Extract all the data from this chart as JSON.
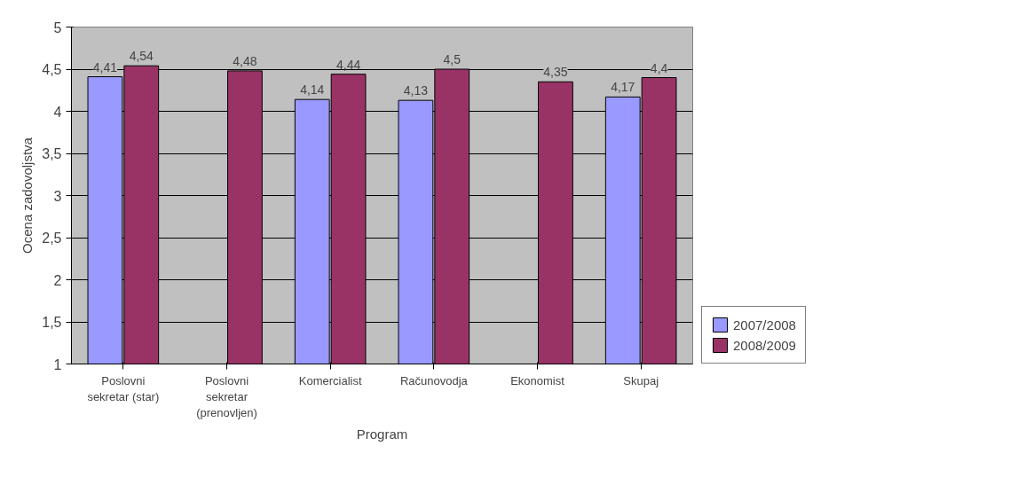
{
  "chart_data": {
    "type": "bar",
    "xlabel": "Program",
    "ylabel": "Ocena zadovoljstva",
    "categories": [
      "Poslovni sekretar (star)",
      "Poslovni sekretar (prenovljen)",
      "Komercialist",
      "Računovodja",
      "Ekonomist",
      "Skupaj"
    ],
    "series": [
      {
        "name": "2007/2008",
        "color": "#9999ff",
        "values": [
          4.41,
          null,
          4.14,
          4.13,
          null,
          4.17
        ],
        "value_labels": [
          "4,41",
          null,
          "4,14",
          "4,13",
          null,
          "4,17"
        ]
      },
      {
        "name": "2008/2009",
        "color": "#993366",
        "values": [
          4.54,
          4.48,
          4.44,
          4.5,
          4.35,
          4.4
        ],
        "value_labels": [
          "4,54",
          "4,48",
          "4,44",
          "4,5",
          "4,35",
          "4,4"
        ]
      }
    ],
    "ylim": [
      1,
      5
    ],
    "yticks": [
      1,
      {
        "value": 1.5,
        "label": "1,5"
      },
      2,
      {
        "value": 2.5,
        "label": "2,5"
      },
      3,
      {
        "value": 3.5,
        "label": "3,5"
      },
      4,
      {
        "value": 4.5,
        "label": "4,5"
      },
      5
    ],
    "grid": "y",
    "legend": "bottom right"
  }
}
